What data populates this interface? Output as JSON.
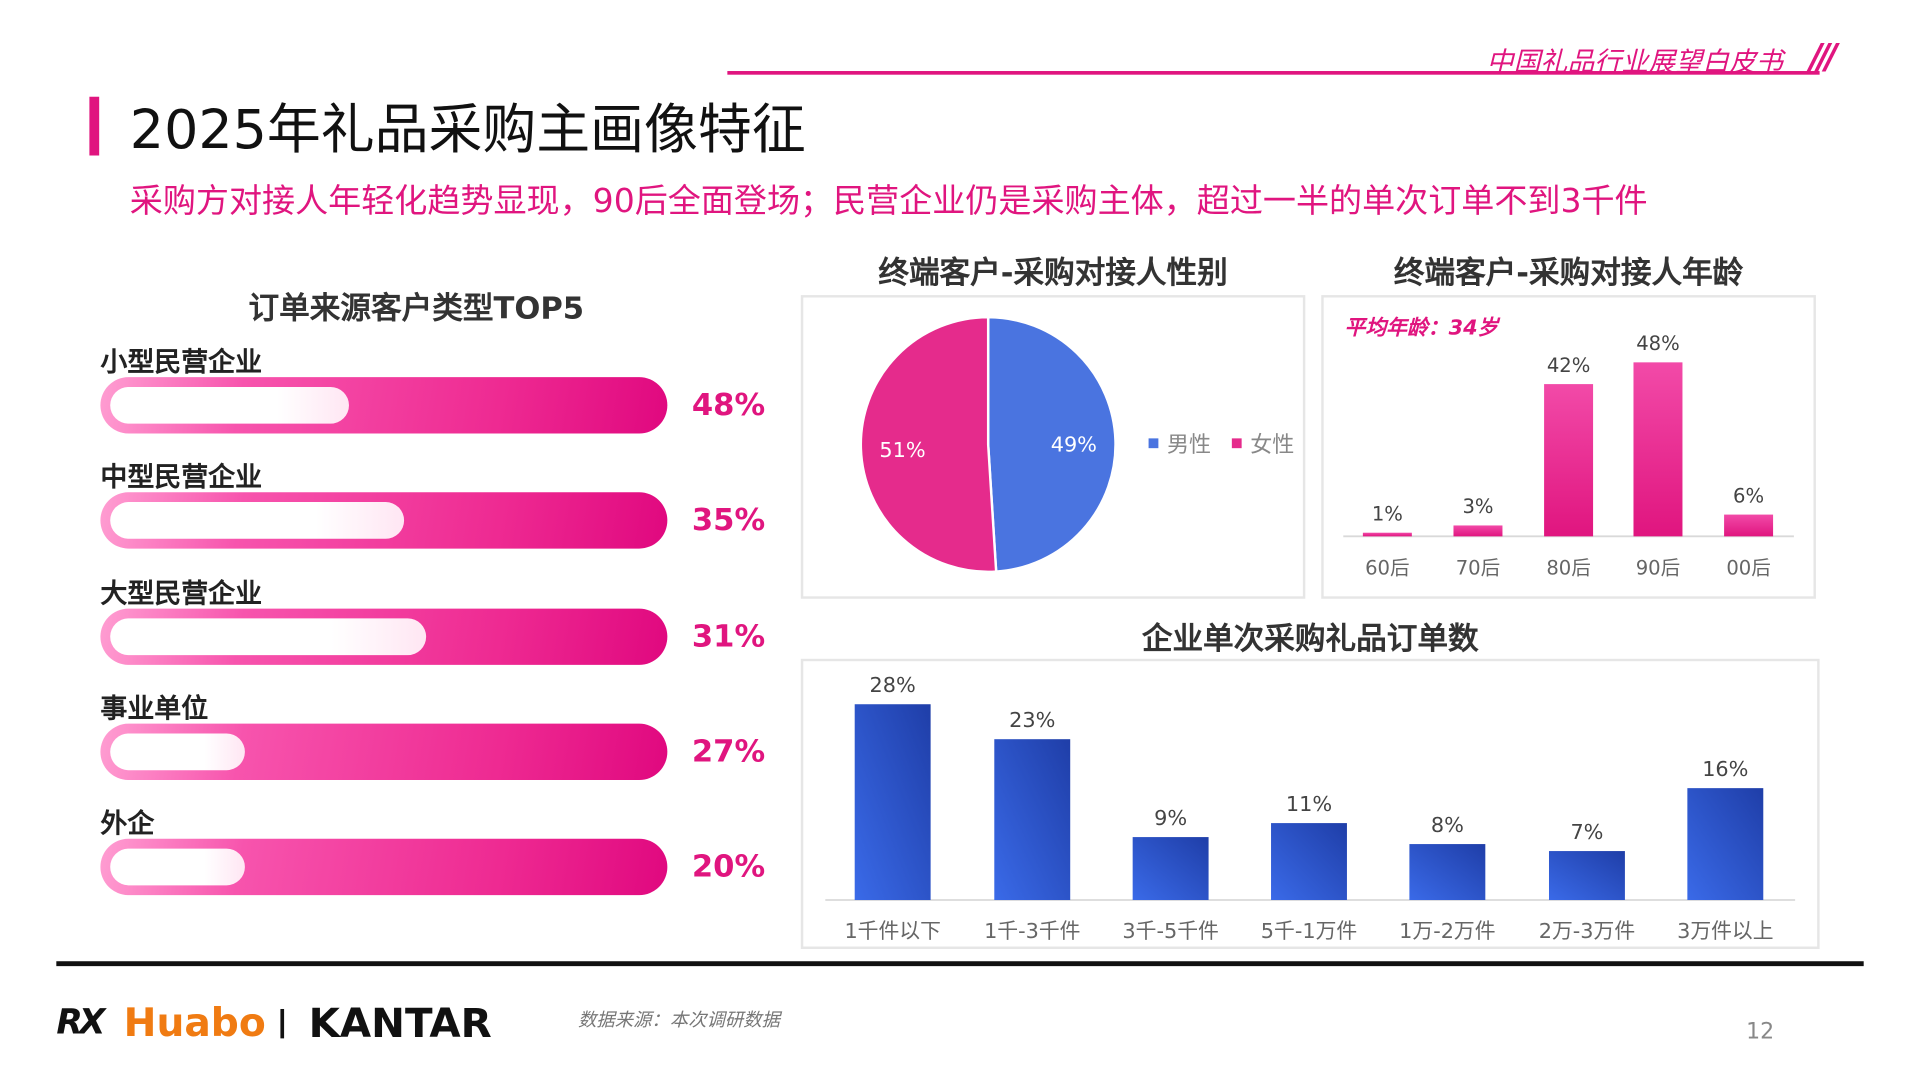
{
  "header": {
    "brand_title": "中国礼品行业展望白皮书",
    "title": "2025年礼品采购主画像特征",
    "subtitle": "采购方对接人年轻化趋势显现，90后全面登场；民营企业仍是采购主体，超过一半的单次订单不到3千件"
  },
  "colors": {
    "accent": "#e0157f",
    "male": "#4a74e0",
    "female": "#e52b8c",
    "bar_blue": "#2a4fc6"
  },
  "chart_data": [
    {
      "type": "bar",
      "title": "订单来源客户类型TOP5",
      "orientation": "horizontal",
      "categories": [
        "小型民营企业",
        "中型民营企业",
        "大型民营企业",
        "事业单位",
        "外企"
      ],
      "values": [
        48,
        35,
        31,
        27,
        20
      ],
      "labels": [
        "48%",
        "35%",
        "31%",
        "27%",
        "20%"
      ]
    },
    {
      "type": "pie",
      "title": "终端客户-采购对接人性别",
      "categories": [
        "男性",
        "女性"
      ],
      "values": [
        49,
        51
      ],
      "labels": [
        "49%",
        "51%"
      ],
      "legend": "right"
    },
    {
      "type": "bar",
      "title": "终端客户-采购对接人年龄",
      "annotation": "平均年龄：34岁",
      "categories": [
        "60后",
        "70后",
        "80后",
        "90后",
        "00后"
      ],
      "values": [
        1,
        3,
        42,
        48,
        6
      ],
      "labels": [
        "1%",
        "3%",
        "42%",
        "48%",
        "6%"
      ]
    },
    {
      "type": "bar",
      "title": "企业单次采购礼品订单数",
      "categories": [
        "1千件以下",
        "1千-3千件",
        "3千-5千件",
        "5千-1万件",
        "1万-2万件",
        "2万-3万件",
        "3万件以上"
      ],
      "values": [
        28,
        23,
        9,
        11,
        8,
        7,
        16
      ],
      "labels": [
        "28%",
        "23%",
        "9%",
        "11%",
        "8%",
        "7%",
        "16%"
      ]
    }
  ],
  "footer": {
    "logo_rx": "RX",
    "logo_huabo": "Huabo",
    "logo_kantar": "KANTAR",
    "source": "数据来源：本次调研数据",
    "page": "12"
  }
}
